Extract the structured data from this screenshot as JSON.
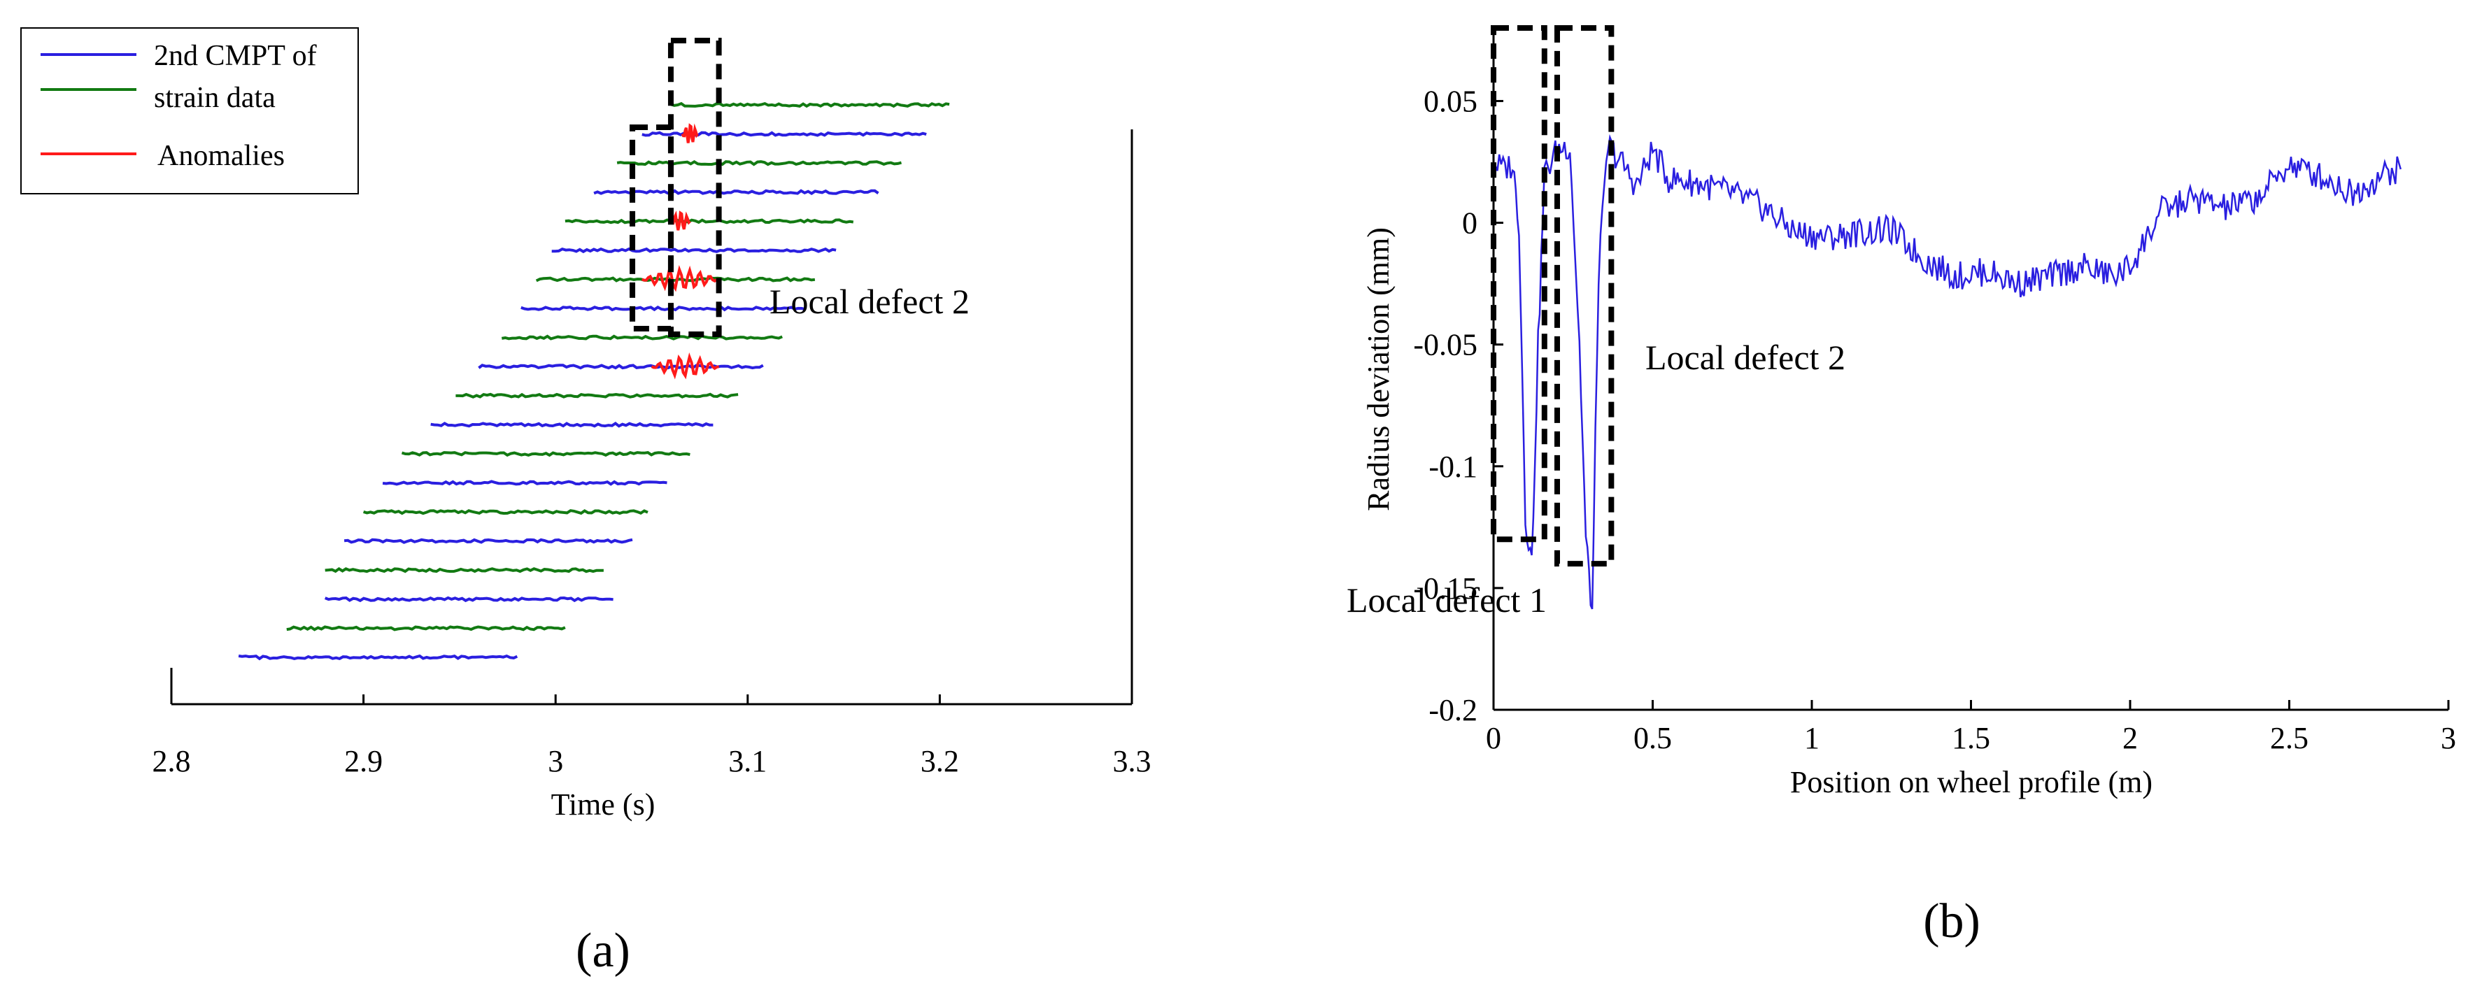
{
  "colors": {
    "blue": "#2a1fe0",
    "green": "#127a12",
    "red": "#ff1a1a",
    "box": "#000000"
  },
  "chart_data": [
    {
      "panel": "(a)",
      "type": "line",
      "xlabel": "Time (s)",
      "ylabel": "",
      "xlim": [
        2.8,
        3.3
      ],
      "xticks": [
        "2.8",
        "2.9",
        "3",
        "3.1",
        "3.2",
        "3.3"
      ],
      "legend": {
        "placement": "top-left",
        "entries": [
          {
            "label": "2nd CMPT of",
            "color": "blue"
          },
          {
            "label": "strain data",
            "color": "green"
          },
          {
            "label": "Anomalies",
            "color": "red"
          }
        ]
      },
      "series": [
        {
          "color": "blue",
          "x": [
            2.835,
            2.98
          ]
        },
        {
          "color": "green",
          "x": [
            2.86,
            3.005
          ]
        },
        {
          "color": "blue",
          "x": [
            2.88,
            3.03
          ]
        },
        {
          "color": "green",
          "x": [
            2.88,
            3.025
          ]
        },
        {
          "color": "blue",
          "x": [
            2.89,
            3.04
          ]
        },
        {
          "color": "green",
          "x": [
            2.9,
            3.048
          ]
        },
        {
          "color": "blue",
          "x": [
            2.91,
            3.058
          ]
        },
        {
          "color": "green",
          "x": [
            2.92,
            3.07
          ]
        },
        {
          "color": "blue",
          "x": [
            2.935,
            3.082
          ]
        },
        {
          "color": "green",
          "x": [
            2.948,
            3.095
          ]
        },
        {
          "color": "blue",
          "x": [
            2.96,
            3.108
          ],
          "anomaly": [
            3.05,
            3.085
          ]
        },
        {
          "color": "green",
          "x": [
            2.972,
            3.118
          ]
        },
        {
          "color": "blue",
          "x": [
            2.982,
            3.13
          ]
        },
        {
          "color": "green",
          "x": [
            2.99,
            3.135
          ],
          "anomaly": [
            3.045,
            3.085
          ]
        },
        {
          "color": "blue",
          "x": [
            2.998,
            3.146
          ]
        },
        {
          "color": "green",
          "x": [
            3.005,
            3.155
          ],
          "anomaly": [
            3.06,
            3.07
          ]
        },
        {
          "color": "blue",
          "x": [
            3.02,
            3.168
          ]
        },
        {
          "color": "green",
          "x": [
            3.032,
            3.18
          ]
        },
        {
          "color": "blue",
          "x": [
            3.045,
            3.193
          ],
          "anomaly": [
            3.066,
            3.074
          ]
        },
        {
          "color": "green",
          "x": [
            3.06,
            3.205
          ]
        }
      ],
      "annotations": [
        {
          "text": "Local defect 2"
        }
      ],
      "boxes": [
        {
          "x0": 3.04,
          "x1": 3.06
        },
        {
          "x0": 3.06,
          "x1": 3.085
        }
      ]
    },
    {
      "panel": "(b)",
      "type": "line",
      "xlabel": "Position on wheel profile (m)",
      "ylabel": "Radius deviation (mm)",
      "xlim": [
        0,
        3
      ],
      "ylim": [
        -0.2,
        0.08
      ],
      "xticks": [
        "0",
        "0.5",
        "1",
        "1.5",
        "2",
        "2.5",
        "3"
      ],
      "yticks": [
        "0.05",
        "0",
        "-0.05",
        "-0.1",
        "-0.15",
        "-0.2"
      ],
      "series": [
        {
          "color": "blue",
          "points": [
            [
              0.0,
              0.025
            ],
            [
              0.03,
              0.022
            ],
            [
              0.06,
              0.024
            ],
            [
              0.08,
              0.0
            ],
            [
              0.1,
              -0.12
            ],
            [
              0.12,
              -0.14
            ],
            [
              0.14,
              -0.05
            ],
            [
              0.16,
              0.02
            ],
            [
              0.2,
              0.03
            ],
            [
              0.24,
              0.032
            ],
            [
              0.27,
              -0.05
            ],
            [
              0.29,
              -0.13
            ],
            [
              0.31,
              -0.16
            ],
            [
              0.33,
              -0.02
            ],
            [
              0.36,
              0.032
            ],
            [
              0.4,
              0.025
            ],
            [
              0.45,
              0.015
            ],
            [
              0.5,
              0.03
            ],
            [
              0.55,
              0.018
            ],
            [
              0.65,
              0.016
            ],
            [
              0.75,
              0.012
            ],
            [
              0.85,
              0.006
            ],
            [
              0.95,
              -0.004
            ],
            [
              1.05,
              -0.006
            ],
            [
              1.15,
              -0.004
            ],
            [
              1.25,
              -0.003
            ],
            [
              1.35,
              -0.015
            ],
            [
              1.45,
              -0.022
            ],
            [
              1.55,
              -0.02
            ],
            [
              1.65,
              -0.025
            ],
            [
              1.75,
              -0.022
            ],
            [
              1.85,
              -0.018
            ],
            [
              1.95,
              -0.022
            ],
            [
              2.0,
              -0.018
            ],
            [
              2.1,
              0.005
            ],
            [
              2.2,
              0.01
            ],
            [
              2.3,
              0.006
            ],
            [
              2.4,
              0.01
            ],
            [
              2.5,
              0.024
            ],
            [
              2.6,
              0.019
            ],
            [
              2.7,
              0.012
            ],
            [
              2.8,
              0.02
            ],
            [
              2.85,
              0.022
            ]
          ]
        }
      ],
      "annotations": [
        {
          "text": "Local defect 1"
        },
        {
          "text": "Local defect 2"
        }
      ],
      "boxes": [
        {
          "x0": 0.0,
          "x1": 0.16,
          "y0": -0.13,
          "y1": 0.08
        },
        {
          "x0": 0.2,
          "x1": 0.37,
          "y0": -0.14,
          "y1": 0.08
        }
      ]
    }
  ]
}
